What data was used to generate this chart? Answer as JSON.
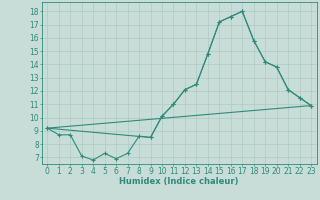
{
  "line1_x": [
    0,
    1,
    2,
    3,
    4,
    5,
    6,
    7,
    8,
    9,
    10,
    11,
    12,
    13,
    14,
    15,
    16,
    17,
    18,
    19,
    20,
    21,
    22,
    23
  ],
  "line1_y": [
    9.2,
    8.7,
    8.7,
    7.1,
    6.8,
    7.3,
    6.9,
    7.3,
    8.6,
    8.5,
    10.1,
    11.0,
    12.1,
    12.5,
    14.8,
    17.2,
    17.6,
    18.0,
    15.8,
    14.2,
    13.8,
    12.1,
    11.5,
    10.9
  ],
  "line2_x": [
    0,
    23
  ],
  "line2_y": [
    9.2,
    10.9
  ],
  "line3_x": [
    0,
    9,
    10,
    11,
    12,
    13,
    14,
    15,
    16,
    17,
    18,
    19,
    20,
    21,
    22,
    23
  ],
  "line3_y": [
    9.2,
    8.5,
    10.1,
    11.0,
    12.1,
    12.5,
    14.8,
    17.2,
    17.6,
    18.0,
    15.8,
    14.2,
    13.8,
    12.1,
    11.5,
    10.9
  ],
  "color": "#2e8b7a",
  "bg_color": "#c8ddd8",
  "grid_color": "#aecbc5",
  "xlabel": "Humidex (Indice chaleur)",
  "ylim": [
    6.5,
    18.7
  ],
  "xlim": [
    -0.5,
    23.5
  ],
  "yticks": [
    7,
    8,
    9,
    10,
    11,
    12,
    13,
    14,
    15,
    16,
    17,
    18
  ],
  "xticks": [
    0,
    1,
    2,
    3,
    4,
    5,
    6,
    7,
    8,
    9,
    10,
    11,
    12,
    13,
    14,
    15,
    16,
    17,
    18,
    19,
    20,
    21,
    22,
    23
  ]
}
